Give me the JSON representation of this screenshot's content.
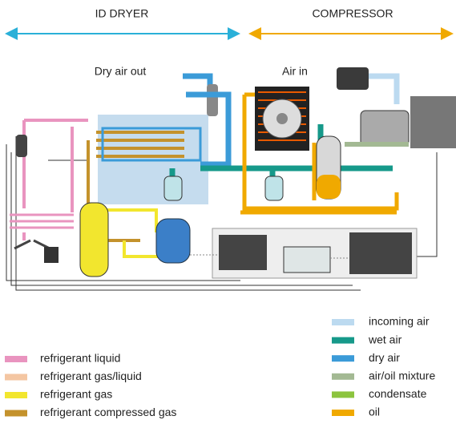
{
  "header": {
    "dryer": "ID DRYER",
    "compressor": "COMPRESSOR"
  },
  "labels": {
    "dry_air_out": "Dry air out",
    "air_in": "Air in"
  },
  "legend_left": [
    {
      "label": "refrigerant liquid",
      "color": "#e994bf"
    },
    {
      "label": "refrigerant gas/liquid",
      "color": "#f4c6a2"
    },
    {
      "label": "refrigerant gas",
      "color": "#f2e62e"
    },
    {
      "label": "refrigerant compressed gas",
      "color": "#c4922c"
    }
  ],
  "legend_right": [
    {
      "label": "incoming air",
      "color": "#bcdaf0"
    },
    {
      "label": "wet air",
      "color": "#16998a"
    },
    {
      "label": "dry air",
      "color": "#3b9bd8"
    },
    {
      "label": "air/oil mixture",
      "color": "#a3b993"
    },
    {
      "label": "condensate",
      "color": "#8cc43e"
    },
    {
      "label": "oil",
      "color": "#f0a900"
    }
  ]
}
